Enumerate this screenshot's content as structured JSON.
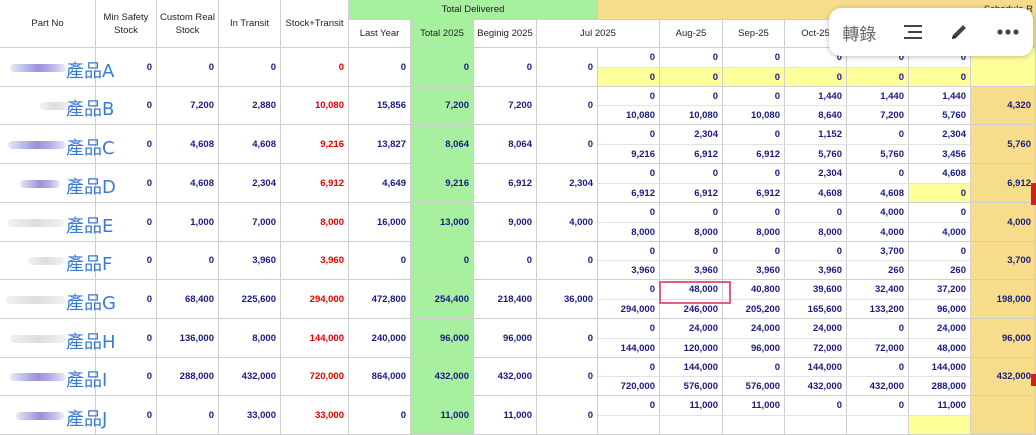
{
  "toolbar": {
    "translate_label": "轉錄",
    "menu_icon": "list-icon",
    "edit_icon": "pencil-icon",
    "more_icon": "more-icon"
  },
  "headers": {
    "part_no": "Part No",
    "min_safety_stock": "Min Safety Stock",
    "custom_real_stock": "Custom Real Stock",
    "in_transit": "In Transit",
    "stock_transit": "Stock+Transit",
    "total_delivered": "Total Delivered",
    "last_year": "Last Year",
    "total_2025": "Total 2025",
    "beginig_2025": "Beginig 2025",
    "jul_2025": "Jul 2025",
    "aug_25": "Aug-25",
    "sep_25": "Sep-25",
    "oct_25": "Oct-25",
    "schedule_partial": "Schedule R"
  },
  "rows": [
    {
      "name": "產品A",
      "min": "0",
      "real": "0",
      "transit": "0",
      "st": "0",
      "last": "0",
      "total": "0",
      "begin": "0",
      "jul": "0",
      "top": [
        "0",
        "0",
        "0",
        "0",
        "0",
        "0"
      ],
      "bot": [
        "0",
        "0",
        "0",
        "0",
        "0",
        "0"
      ],
      "tail": ""
    },
    {
      "name": "產品B",
      "min": "0",
      "real": "7,200",
      "transit": "2,880",
      "st": "10,080",
      "last": "15,856",
      "total": "7,200",
      "begin": "7,200",
      "jul": "0",
      "top": [
        "0",
        "0",
        "0",
        "1,440",
        "1,440",
        "1,440"
      ],
      "bot": [
        "10,080",
        "10,080",
        "10,080",
        "8,640",
        "7,200",
        "5,760"
      ],
      "tail": "4,320"
    },
    {
      "name": "產品C",
      "min": "0",
      "real": "4,608",
      "transit": "4,608",
      "st": "9,216",
      "last": "13,827",
      "total": "8,064",
      "begin": "8,064",
      "jul": "0",
      "top": [
        "0",
        "2,304",
        "0",
        "1,152",
        "0",
        "2,304"
      ],
      "bot": [
        "9,216",
        "6,912",
        "6,912",
        "5,760",
        "5,760",
        "3,456"
      ],
      "tail": "5,760"
    },
    {
      "name": "產品D",
      "min": "0",
      "real": "4,608",
      "transit": "2,304",
      "st": "6,912",
      "last": "4,649",
      "total": "9,216",
      "begin": "6,912",
      "jul": "2,304",
      "top": [
        "0",
        "0",
        "0",
        "2,304",
        "0",
        "4,608"
      ],
      "bot": [
        "6,912",
        "6,912",
        "6,912",
        "4,608",
        "4,608",
        "0"
      ],
      "tail": "6,912"
    },
    {
      "name": "產品E",
      "min": "0",
      "real": "1,000",
      "transit": "7,000",
      "st": "8,000",
      "last": "16,000",
      "total": "13,000",
      "begin": "9,000",
      "jul": "4,000",
      "top": [
        "0",
        "0",
        "0",
        "0",
        "4,000",
        "0"
      ],
      "bot": [
        "8,000",
        "8,000",
        "8,000",
        "8,000",
        "4,000",
        "4,000"
      ],
      "tail": "4,000"
    },
    {
      "name": "產品F",
      "min": "0",
      "real": "0",
      "transit": "3,960",
      "st": "3,960",
      "last": "0",
      "total": "0",
      "begin": "0",
      "jul": "0",
      "top": [
        "0",
        "0",
        "0",
        "0",
        "3,700",
        "0"
      ],
      "bot": [
        "3,960",
        "3,960",
        "3,960",
        "3,960",
        "260",
        "260"
      ],
      "tail": "3,700"
    },
    {
      "name": "產品G",
      "min": "0",
      "real": "68,400",
      "transit": "225,600",
      "st": "294,000",
      "last": "472,800",
      "total": "254,400",
      "begin": "218,400",
      "jul": "36,000",
      "top": [
        "0",
        "48,000",
        "40,800",
        "39,600",
        "32,400",
        "37,200"
      ],
      "bot": [
        "294,000",
        "246,000",
        "205,200",
        "165,600",
        "133,200",
        "96,000"
      ],
      "tail": "198,000"
    },
    {
      "name": "產品H",
      "min": "0",
      "real": "136,000",
      "transit": "8,000",
      "st": "144,000",
      "last": "240,000",
      "total": "96,000",
      "begin": "96,000",
      "jul": "0",
      "top": [
        "0",
        "24,000",
        "24,000",
        "24,000",
        "0",
        "24,000"
      ],
      "bot": [
        "144,000",
        "120,000",
        "96,000",
        "72,000",
        "72,000",
        "48,000"
      ],
      "tail": "96,000"
    },
    {
      "name": "產品I",
      "min": "0",
      "real": "288,000",
      "transit": "432,000",
      "st": "720,000",
      "last": "864,000",
      "total": "432,000",
      "begin": "432,000",
      "jul": "0",
      "top": [
        "0",
        "144,000",
        "0",
        "144,000",
        "0",
        "144,000"
      ],
      "bot": [
        "720,000",
        "576,000",
        "576,000",
        "432,000",
        "432,000",
        "288,000"
      ],
      "tail": "432,000"
    },
    {
      "name": "產品J",
      "min": "0",
      "real": "0",
      "transit": "33,000",
      "st": "33,000",
      "last": "0",
      "total": "11,000",
      "begin": "11,000",
      "jul": "0",
      "top": [
        "0",
        "11,000",
        "11,000",
        "0",
        "0",
        "11,000"
      ],
      "bot": [
        "",
        "",
        "",
        "",
        "",
        ""
      ],
      "tail": ""
    }
  ]
}
